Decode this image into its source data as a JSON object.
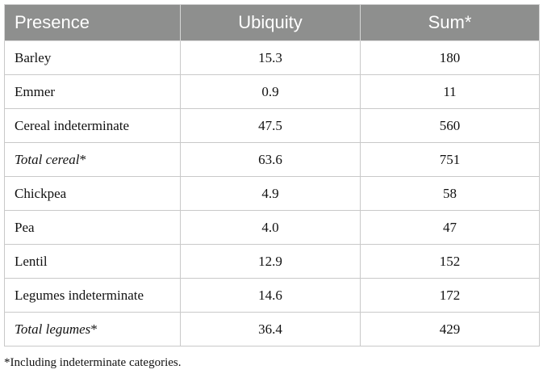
{
  "table": {
    "headers": {
      "presence": "Presence",
      "ubiquity": "Ubiquity",
      "sum": "Sum*"
    },
    "rows": [
      {
        "label": "Barley",
        "suffix": "",
        "ubiquity": "15.3",
        "sum": "180"
      },
      {
        "label": "Emmer",
        "suffix": "",
        "ubiquity": "0.9",
        "sum": "11"
      },
      {
        "label": "Cereal indeterminate",
        "suffix": "",
        "ubiquity": "47.5",
        "sum": "560"
      },
      {
        "label": "Total cereal",
        "suffix": "*",
        "ubiquity": "63.6",
        "sum": "751"
      },
      {
        "label": "Chickpea",
        "suffix": "",
        "ubiquity": "4.9",
        "sum": "58"
      },
      {
        "label": "Pea",
        "suffix": "",
        "ubiquity": "4.0",
        "sum": "47"
      },
      {
        "label": "Lentil",
        "suffix": "",
        "ubiquity": "12.9",
        "sum": "152"
      },
      {
        "label": "Legumes indeterminate",
        "suffix": "",
        "ubiquity": "14.6",
        "sum": "172"
      },
      {
        "label": "Total legumes",
        "suffix": "*",
        "ubiquity": "36.4",
        "sum": "429"
      }
    ]
  },
  "footnote": "*Including indeterminate categories.",
  "colors": {
    "header_background": "#8e8f8e",
    "header_text": "#ffffff",
    "grid_lines": "#c9c9c9"
  }
}
